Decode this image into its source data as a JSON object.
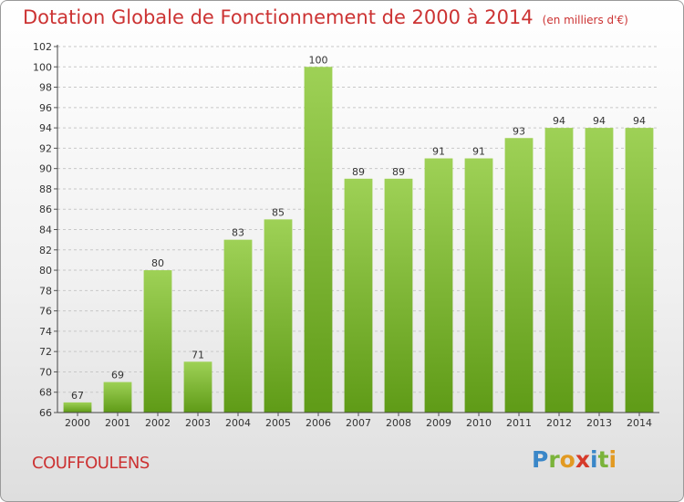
{
  "title": "Dotation Globale de Fonctionnement de 2000 à 2014",
  "unit": "(en milliers d'€)",
  "town": "COUFFOULENS",
  "logo": "Proxiti",
  "colors": {
    "title": "#cc3333",
    "bar_top": "#9ed156",
    "bar_bottom": "#5f9b17",
    "grid": "#c8c8c8"
  },
  "chart_data": {
    "type": "bar",
    "title": "Dotation Globale de Fonctionnement de 2000 à 2014",
    "subtitle": "(en milliers d'€)",
    "categories": [
      "2000",
      "2001",
      "2002",
      "2003",
      "2004",
      "2005",
      "2006",
      "2007",
      "2008",
      "2009",
      "2010",
      "2011",
      "2012",
      "2013",
      "2014"
    ],
    "values": [
      67,
      69,
      80,
      71,
      83,
      85,
      100,
      89,
      89,
      91,
      91,
      93,
      94,
      94,
      94
    ],
    "ylim": [
      66,
      102
    ],
    "ytick_step": 2,
    "grid": true,
    "data_labels": true
  }
}
